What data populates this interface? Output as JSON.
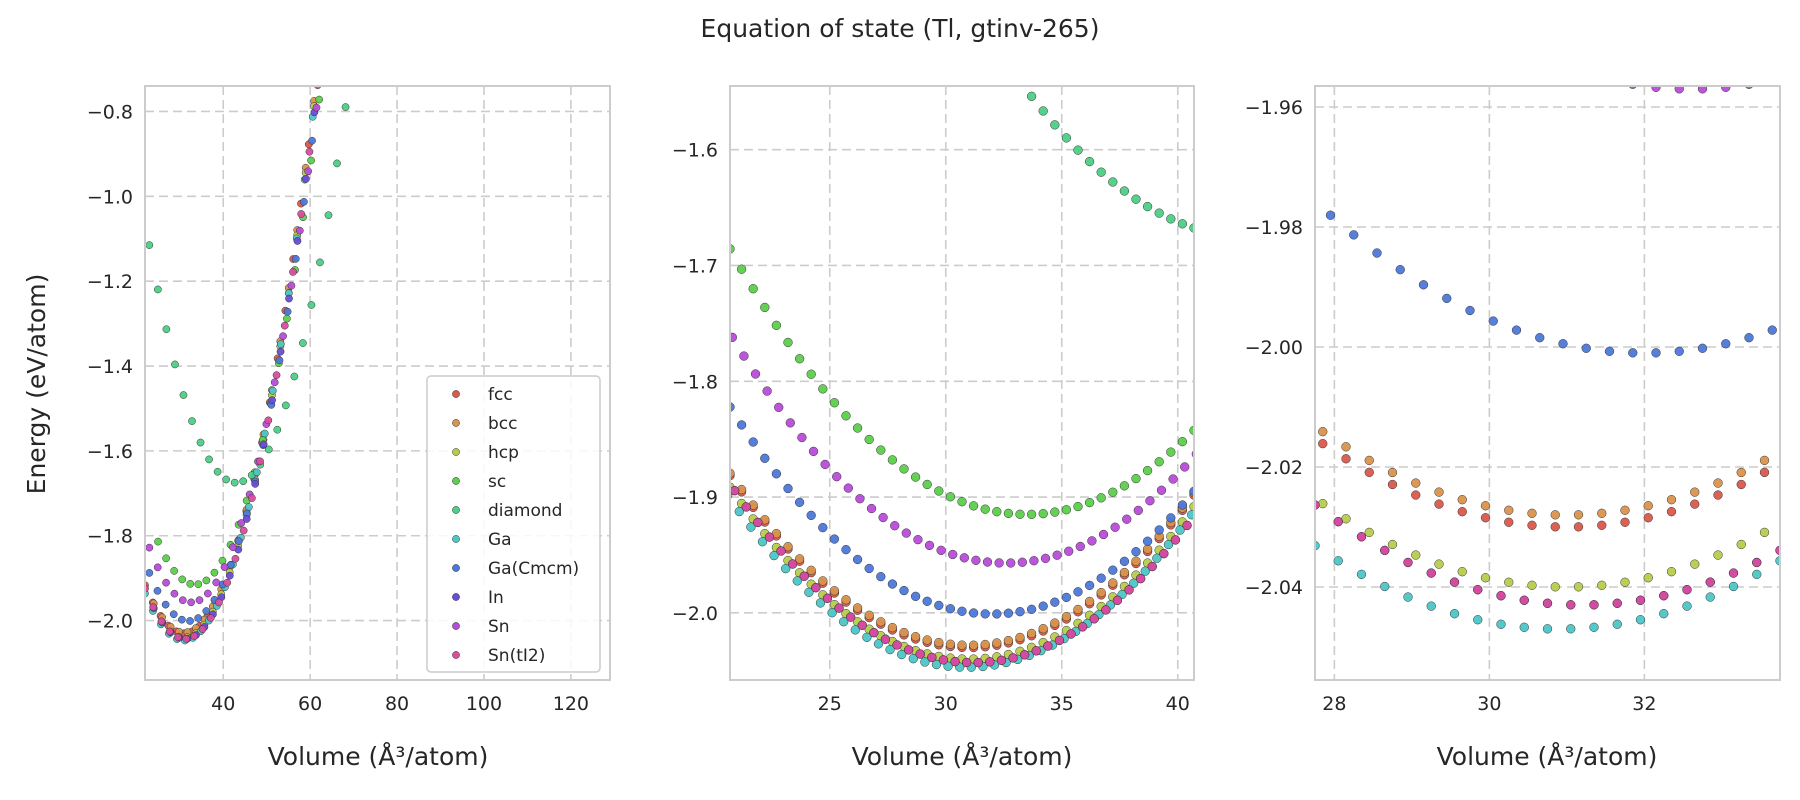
{
  "figure": {
    "title": "Equation of state (Tl, gtinv-265)"
  },
  "chart_data": [
    {
      "type": "scatter",
      "xlabel": "Volume (Å³/atom)",
      "ylabel": "Energy (eV/atom)",
      "xlim": [
        22,
        129
      ],
      "ylim": [
        -2.14,
        -0.74
      ],
      "xticks": [
        40,
        60,
        80,
        100,
        120
      ],
      "yticks": [
        -0.8,
        -1.0,
        -1.2,
        -1.4,
        -1.6,
        -1.8,
        -2.0
      ],
      "grid": true,
      "legend_position": "lower-right",
      "legend": [
        "fcc",
        "bcc",
        "hcp",
        "sc",
        "diamond",
        "Ga",
        "Ga(Cmcm)",
        "In",
        "Sn",
        "Sn(tI2)"
      ],
      "series": [
        {
          "name": "fcc",
          "color": "#d9594c",
          "curve": {
            "vmin": 31.0,
            "emin": -2.03,
            "c2": 0.0014,
            "vstart": 22.0,
            "vend": 92.0,
            "n": 40
          }
        },
        {
          "name": "bcc",
          "color": "#d9934c",
          "curve": {
            "vmin": 31.0,
            "emin": -2.028,
            "c2": 0.0014,
            "vstart": 24.0,
            "vend": 92.0,
            "n": 36
          }
        },
        {
          "name": "hcp",
          "color": "#b8cc4c",
          "curve": {
            "vmin": 31.0,
            "emin": -2.04,
            "c2": 0.0014,
            "vstart": 24.0,
            "vend": 92.0,
            "n": 36
          }
        },
        {
          "name": "sc",
          "color": "#5ccf4c",
          "curve": {
            "vmin": 33.5,
            "emin": -1.915,
            "c2": 0.0014,
            "vstart": 25.0,
            "vend": 101.0,
            "n": 42
          }
        },
        {
          "name": "diamond",
          "color": "#4ccf85",
          "curve": {
            "vmin": 43.0,
            "emin": -1.675,
            "c2": 0.0014,
            "vstart": 23.0,
            "vend": 129.0,
            "n": 55
          }
        },
        {
          "name": "Ga",
          "color": "#4cc6c6",
          "curve": {
            "vmin": 30.9,
            "emin": -2.047,
            "c2": 0.0014,
            "vstart": 22.0,
            "vend": 90.0,
            "n": 38
          }
        },
        {
          "name": "Ga(Cmcm)",
          "color": "#4c78d9",
          "curve": {
            "vmin": 32.0,
            "emin": -2.001,
            "c2": 0.0014,
            "vstart": 23.0,
            "vend": 96.0,
            "n": 40
          }
        },
        {
          "name": "In",
          "color": "#6a4cd9",
          "curve": {
            "vmin": 31.2,
            "emin": -2.043,
            "c2": 0.0014,
            "vstart": 24.0,
            "vend": 96.0,
            "n": 38
          }
        },
        {
          "name": "Sn",
          "color": "#b84cd9",
          "curve": {
            "vmin": 32.6,
            "emin": -1.957,
            "c2": 0.0014,
            "vstart": 23.0,
            "vend": 98.0,
            "n": 40
          }
        },
        {
          "name": "Sn(tI2)",
          "color": "#d94c9e",
          "curve": {
            "vmin": 31.2,
            "emin": -2.043,
            "c2": 0.0014,
            "vstart": 22.0,
            "vend": 92.0,
            "n": 38
          }
        }
      ]
    },
    {
      "type": "scatter",
      "xlabel": "Volume (Å³/atom)",
      "ylabel": "",
      "xlim": [
        20.7,
        40.7
      ],
      "ylim": [
        -2.058,
        -1.545
      ],
      "xticks": [
        25,
        30,
        35,
        40
      ],
      "yticks": [
        -1.6,
        -1.7,
        -1.8,
        -1.9,
        -2.0
      ],
      "grid": true,
      "series_ref": "chart_data.0.series",
      "point_step": 0.5
    },
    {
      "type": "scatter",
      "xlabel": "Volume (Å³/atom)",
      "ylabel": "",
      "xlim": [
        27.75,
        33.75
      ],
      "ylim": [
        -2.0555,
        -1.9565
      ],
      "xticks": [
        28,
        30,
        32
      ],
      "yticks": [
        -1.96,
        -1.98,
        -2.0,
        -2.02,
        -2.04
      ],
      "grid": true,
      "series_ref": "chart_data.0.series",
      "point_step": 0.3
    }
  ]
}
